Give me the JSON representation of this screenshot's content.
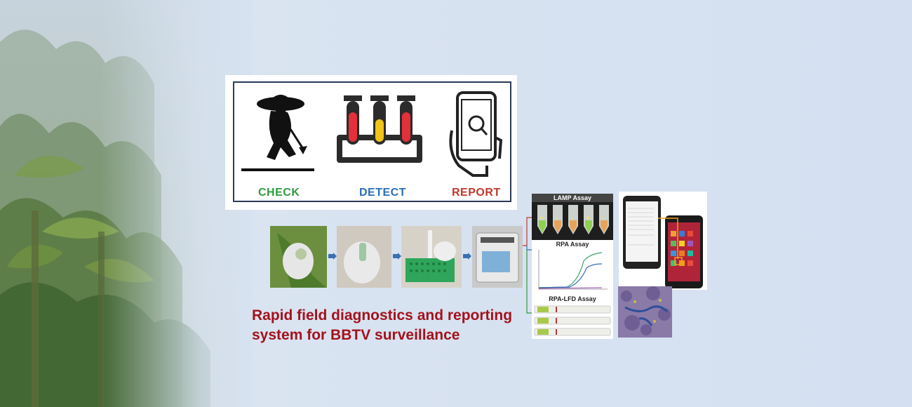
{
  "panel": {
    "check_label": "CHECK",
    "detect_label": "DETECT",
    "report_label": "REPORT"
  },
  "assays": {
    "lamp_title": "LAMP Assay",
    "lamp_tube_marks": [
      "+",
      "-",
      "-",
      "+",
      "-"
    ],
    "rpa_title": "RPA Assay",
    "rpa_lfd_title": "RPA-LFD Assay"
  },
  "caption": {
    "line1": "Rapid field diagnostics and reporting",
    "line2": "system for BBTV surveillance"
  },
  "colors": {
    "check": "#2e9b3e",
    "detect": "#2a6fb5",
    "report": "#c0392b",
    "caption": "#a3121c"
  }
}
